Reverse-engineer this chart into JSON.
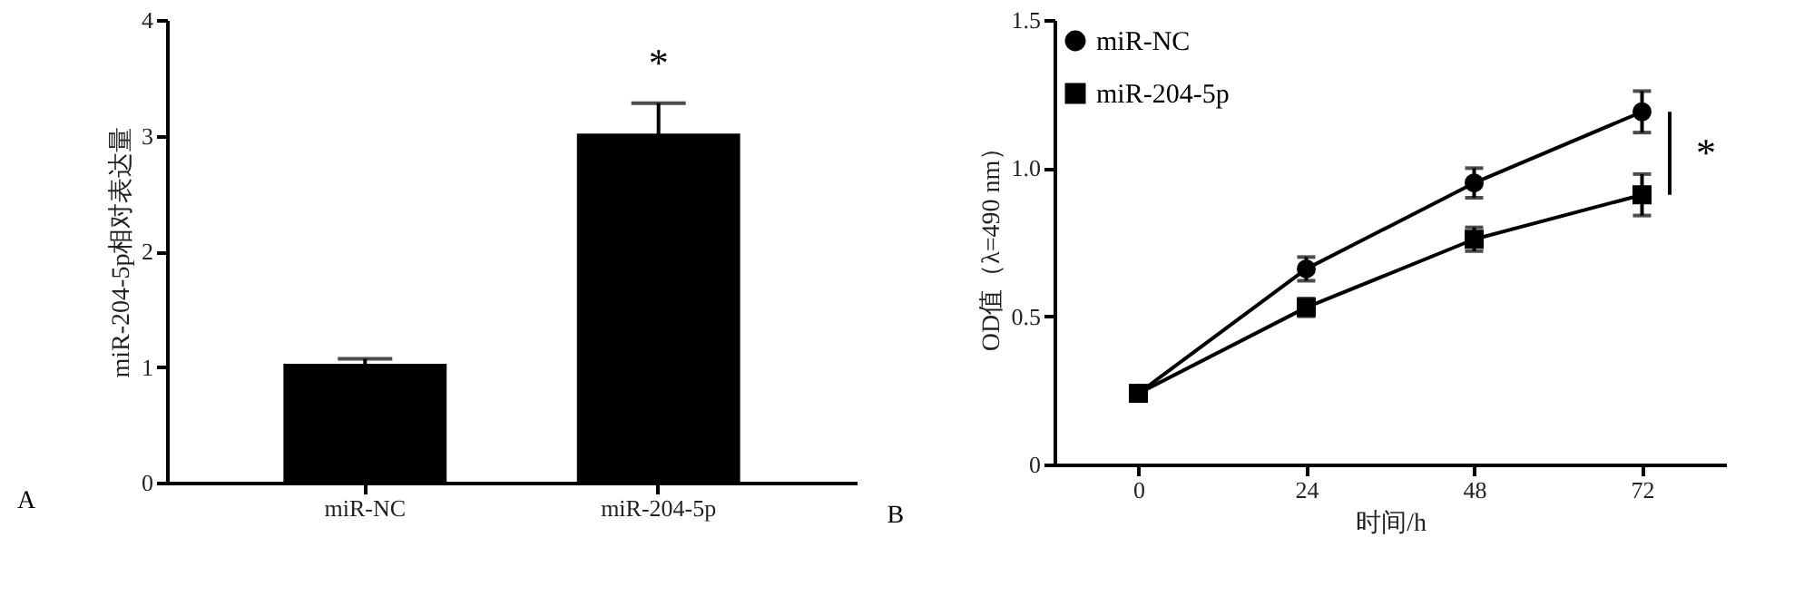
{
  "chart_data": [
    {
      "type": "bar",
      "ylabel": "miR-204-5p相对表达量",
      "categories": [
        "miR-NC",
        "miR-204-5p"
      ],
      "values": [
        1.02,
        3.01
      ],
      "errors": [
        0.05,
        0.27
      ],
      "color": "#000000",
      "ylim": [
        0,
        4
      ],
      "yticks": [
        0,
        1,
        2,
        3,
        4
      ],
      "grid": false,
      "annotations": [
        "A",
        "*"
      ]
    },
    {
      "type": "line",
      "xlabel": "时间/h",
      "ylabel": "OD值（λ=490 nm）",
      "x": [
        0,
        24,
        48,
        72
      ],
      "series": [
        {
          "name": "miR-NC",
          "color": "#000000",
          "marker": "circle",
          "values": [
            0.24,
            0.66,
            0.95,
            1.19
          ],
          "errors": [
            null,
            0.04,
            0.05,
            0.07
          ]
        },
        {
          "name": "miR-204-5p",
          "color": "#000000",
          "marker": "square",
          "values": [
            0.24,
            0.53,
            0.76,
            0.91
          ],
          "errors": [
            null,
            0.03,
            0.04,
            0.07
          ]
        }
      ],
      "xlim": [
        -12,
        84
      ],
      "xticks": [
        0,
        24,
        48,
        72
      ],
      "ylim": [
        0,
        1.5
      ],
      "yticks": [
        {
          "value": 0,
          "label": "0"
        },
        0.5,
        {
          "value": 1,
          "label": "1.0"
        },
        1.5
      ],
      "grid": false,
      "legend": "top left",
      "line_style": "solid",
      "annotations": [
        "B",
        "*"
      ]
    }
  ]
}
